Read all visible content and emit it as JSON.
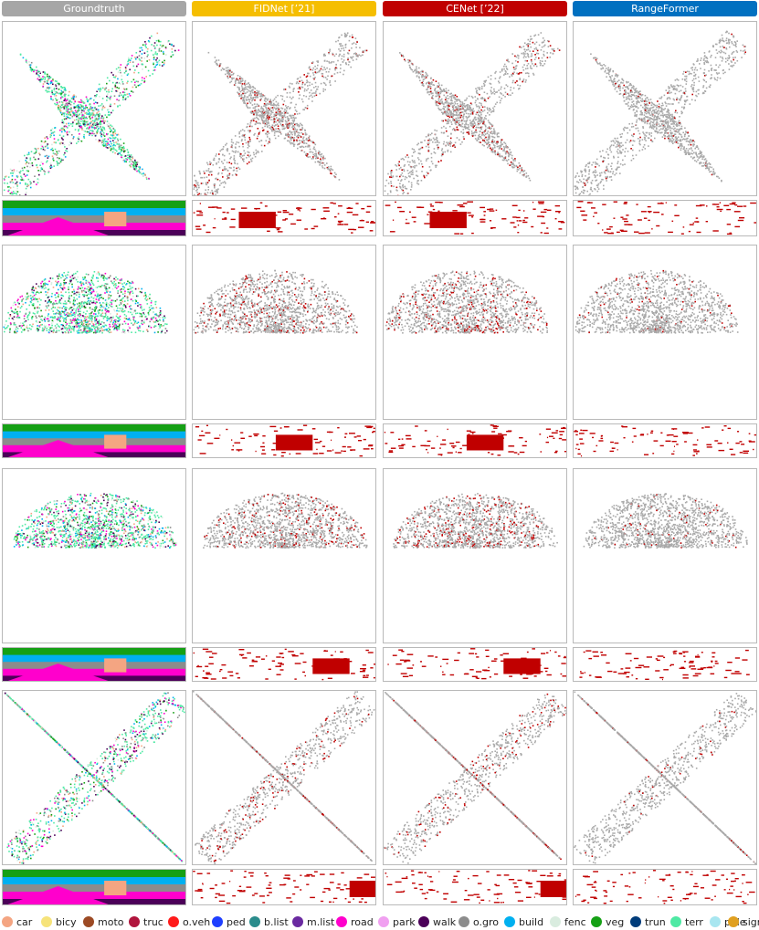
{
  "columns": [
    {
      "label": "Groundtruth",
      "color": "#a6a6a6"
    },
    {
      "label": "FIDNet [’21]",
      "color": "#f5be00"
    },
    {
      "label": "CENet [’22]",
      "color": "#c00000"
    },
    {
      "label": "RangeFormer",
      "color": "#0070c0"
    }
  ],
  "legend": [
    {
      "label": "car",
      "color": "#f4a582"
    },
    {
      "label": "bicy",
      "color": "#f6e37a"
    },
    {
      "label": "moto",
      "color": "#9c4a24"
    },
    {
      "label": "truc",
      "color": "#b0153d"
    },
    {
      "label": "o.veh",
      "color": "#ff1a1a"
    },
    {
      "label": "ped",
      "color": "#1f3fff"
    },
    {
      "label": "b.list",
      "color": "#2a8c8c"
    },
    {
      "label": "m.list",
      "color": "#6a2aa0"
    },
    {
      "label": "road",
      "color": "#ff00cc"
    },
    {
      "label": "park",
      "color": "#f0a0f0"
    },
    {
      "label": "walk",
      "color": "#4b0058"
    },
    {
      "label": "o.gro",
      "color": "#8c8c8c"
    },
    {
      "label": "build",
      "color": "#00b0f0"
    },
    {
      "label": "fenc",
      "color": "#d9ecdf"
    },
    {
      "label": "veg",
      "color": "#15a015"
    },
    {
      "label": "trun",
      "color": "#003c7a"
    },
    {
      "label": "terr",
      "color": "#4ee9a4"
    },
    {
      "label": "pole",
      "color": "#a8e6f0"
    },
    {
      "label": "sign",
      "color": "#e0a020"
    }
  ]
}
